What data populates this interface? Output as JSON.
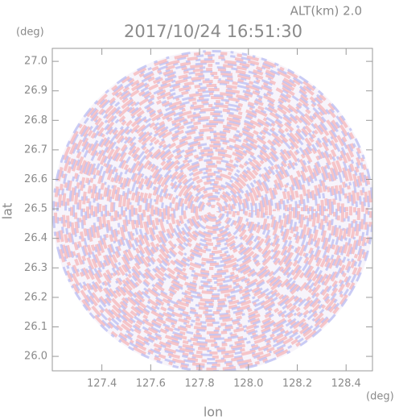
{
  "chart_data": {
    "type": "radar-ppi",
    "header": "ALT(km) 2.0",
    "title": "2017/10/24 16:51:30",
    "y_unit": "(deg)",
    "x_unit": "(deg)",
    "xlabel": "lon",
    "ylabel": "lat",
    "xlim": [
      127.197,
      128.508
    ],
    "ylim": [
      25.951,
      27.044
    ],
    "xticks": [
      127.4,
      127.6,
      127.8,
      {
        "value": 128,
        "label": "128.0"
      },
      128.2,
      128.4
    ],
    "yticks": [
      {
        "value": 26,
        "label": "26.0"
      },
      26.1,
      26.2,
      26.3,
      26.4,
      26.5,
      26.6,
      26.7,
      26.8,
      26.9,
      {
        "value": 27,
        "label": "27.0"
      }
    ]
  }
}
